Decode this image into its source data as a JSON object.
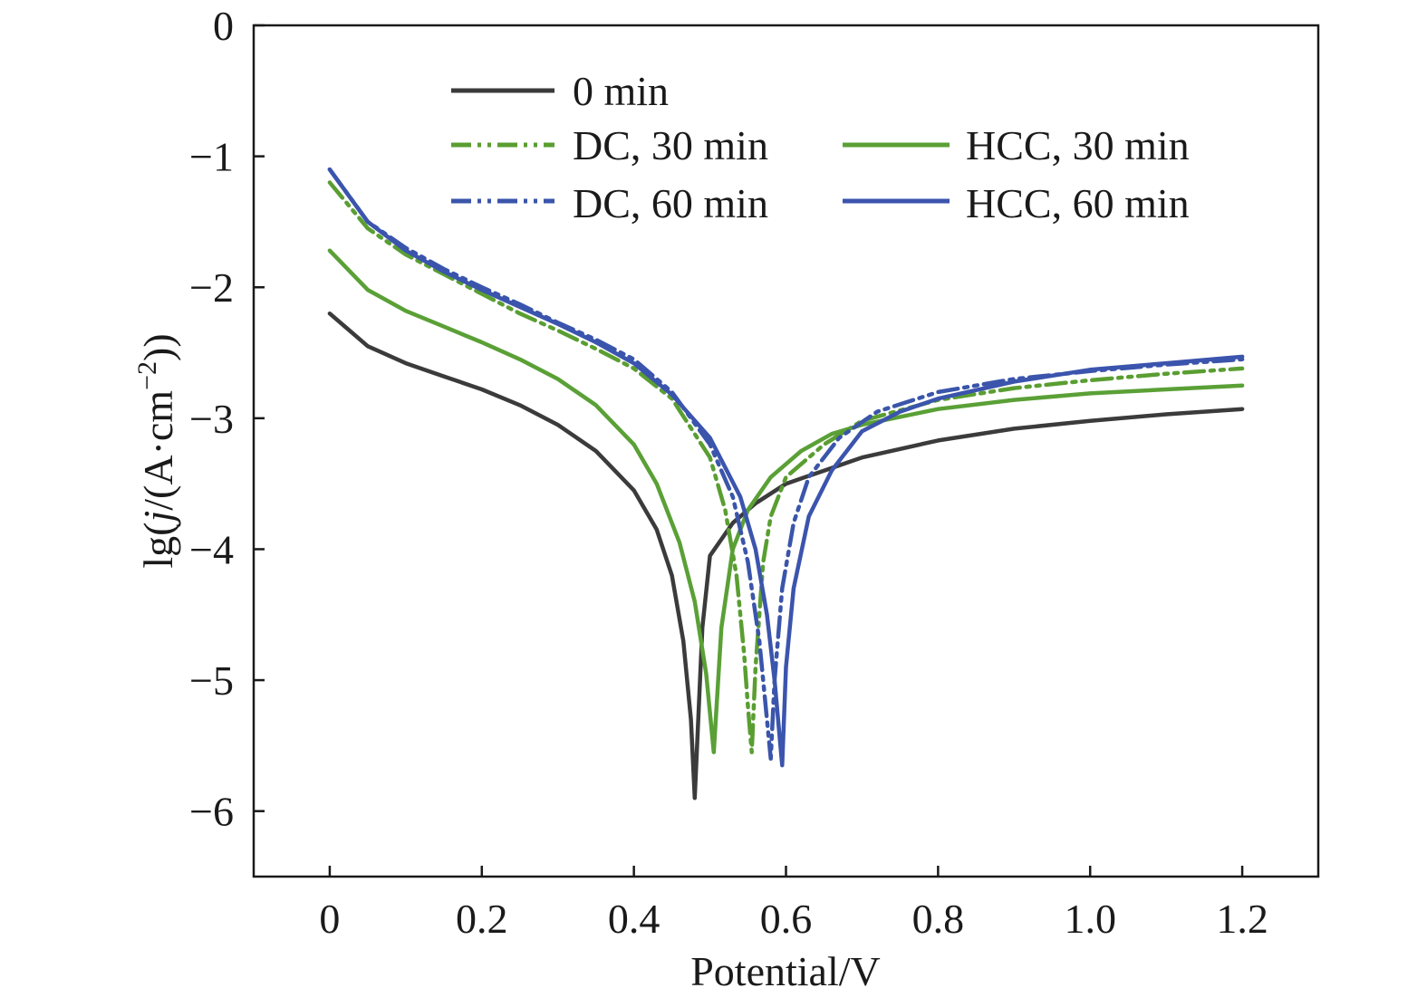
{
  "chart_data": {
    "type": "line",
    "xlabel": "Potential/V",
    "ylabel_prefix": "lg(",
    "ylabel_italic": "j",
    "ylabel_mid": "/(A·cm",
    "ylabel_sup": "−2",
    "ylabel_suffix": "))",
    "xlim": [
      -0.1,
      1.3
    ],
    "ylim": [
      -6.5,
      0
    ],
    "xticks": [
      0,
      0.2,
      0.4,
      0.6,
      0.8,
      1.0,
      1.2
    ],
    "xtick_labels": [
      "0",
      "0.2",
      "0.4",
      "0.6",
      "0.8",
      "1.0",
      "1.2"
    ],
    "yticks": [
      0,
      -1,
      -2,
      -3,
      -4,
      -5,
      -6
    ],
    "ytick_labels": [
      "0",
      "−1",
      "−2",
      "−3",
      "−4",
      "−5",
      "−6"
    ],
    "grid": false,
    "legend_position": "top",
    "series": [
      {
        "name": "0 min",
        "color": "#3b3b3b",
        "style": "solid",
        "ecorr": 0.48,
        "min_lg_j": -5.9,
        "x": [
          0.0,
          0.05,
          0.1,
          0.15,
          0.2,
          0.25,
          0.3,
          0.35,
          0.4,
          0.43,
          0.45,
          0.465,
          0.475,
          0.48,
          0.49,
          0.5,
          0.53,
          0.56,
          0.6,
          0.65,
          0.7,
          0.8,
          0.9,
          1.0,
          1.1,
          1.2
        ],
        "y": [
          -2.2,
          -2.45,
          -2.58,
          -2.68,
          -2.78,
          -2.9,
          -3.05,
          -3.25,
          -3.55,
          -3.85,
          -4.2,
          -4.7,
          -5.3,
          -5.9,
          -4.6,
          -4.05,
          -3.8,
          -3.65,
          -3.5,
          -3.4,
          -3.3,
          -3.17,
          -3.08,
          -3.02,
          -2.97,
          -2.93
        ]
      },
      {
        "name": "DC, 30 min",
        "color": "#5a9e32",
        "style": "dashdotdot",
        "ecorr": 0.555,
        "min_lg_j": -5.55,
        "x": [
          0.0,
          0.05,
          0.1,
          0.15,
          0.2,
          0.25,
          0.3,
          0.35,
          0.4,
          0.45,
          0.5,
          0.52,
          0.535,
          0.545,
          0.55,
          0.555,
          0.56,
          0.57,
          0.58,
          0.6,
          0.65,
          0.7,
          0.8,
          0.9,
          1.0,
          1.1,
          1.2
        ],
        "y": [
          -1.2,
          -1.55,
          -1.75,
          -1.9,
          -2.05,
          -2.2,
          -2.33,
          -2.47,
          -2.62,
          -2.85,
          -3.3,
          -3.7,
          -4.2,
          -4.8,
          -5.2,
          -5.55,
          -4.9,
          -4.1,
          -3.75,
          -3.45,
          -3.2,
          -3.02,
          -2.86,
          -2.77,
          -2.71,
          -2.66,
          -2.62
        ]
      },
      {
        "name": "DC, 60 min",
        "color": "#3a55aa",
        "style": "dashdotdot",
        "ecorr": 0.58,
        "min_lg_j": -5.6,
        "x": [
          0.0,
          0.05,
          0.1,
          0.15,
          0.2,
          0.25,
          0.3,
          0.35,
          0.4,
          0.45,
          0.5,
          0.53,
          0.55,
          0.565,
          0.575,
          0.58,
          0.585,
          0.595,
          0.61,
          0.63,
          0.67,
          0.72,
          0.8,
          0.9,
          1.0,
          1.1,
          1.2
        ],
        "y": [
          -1.1,
          -1.5,
          -1.7,
          -1.86,
          -2.0,
          -2.13,
          -2.27,
          -2.4,
          -2.55,
          -2.8,
          -3.2,
          -3.6,
          -4.1,
          -4.7,
          -5.3,
          -5.6,
          -5.0,
          -4.3,
          -3.8,
          -3.45,
          -3.15,
          -2.95,
          -2.8,
          -2.7,
          -2.64,
          -2.59,
          -2.55
        ]
      },
      {
        "name": "HCC, 30 min",
        "color": "#5aa036",
        "style": "solid",
        "ecorr": 0.505,
        "min_lg_j": -5.55,
        "x": [
          0.0,
          0.05,
          0.1,
          0.15,
          0.2,
          0.25,
          0.3,
          0.35,
          0.4,
          0.43,
          0.46,
          0.48,
          0.495,
          0.505,
          0.515,
          0.53,
          0.55,
          0.58,
          0.62,
          0.66,
          0.7,
          0.8,
          0.9,
          1.0,
          1.1,
          1.2
        ],
        "y": [
          -1.72,
          -2.02,
          -2.18,
          -2.3,
          -2.42,
          -2.55,
          -2.7,
          -2.9,
          -3.2,
          -3.5,
          -3.95,
          -4.4,
          -4.95,
          -5.55,
          -4.6,
          -4.0,
          -3.7,
          -3.45,
          -3.25,
          -3.12,
          -3.05,
          -2.93,
          -2.86,
          -2.81,
          -2.78,
          -2.75
        ]
      },
      {
        "name": "HCC, 60 min",
        "color": "#3b54ad",
        "style": "solid",
        "ecorr": 0.595,
        "min_lg_j": -5.65,
        "x": [
          0.0,
          0.05,
          0.1,
          0.15,
          0.2,
          0.25,
          0.3,
          0.35,
          0.4,
          0.45,
          0.5,
          0.54,
          0.56,
          0.575,
          0.585,
          0.595,
          0.6,
          0.61,
          0.63,
          0.66,
          0.7,
          0.75,
          0.8,
          0.9,
          1.0,
          1.1,
          1.2
        ],
        "y": [
          -1.1,
          -1.5,
          -1.72,
          -1.88,
          -2.02,
          -2.15,
          -2.28,
          -2.42,
          -2.58,
          -2.82,
          -3.15,
          -3.6,
          -4.0,
          -4.5,
          -5.0,
          -5.65,
          -4.9,
          -4.3,
          -3.75,
          -3.4,
          -3.1,
          -2.95,
          -2.85,
          -2.72,
          -2.63,
          -2.58,
          -2.53
        ]
      }
    ]
  }
}
